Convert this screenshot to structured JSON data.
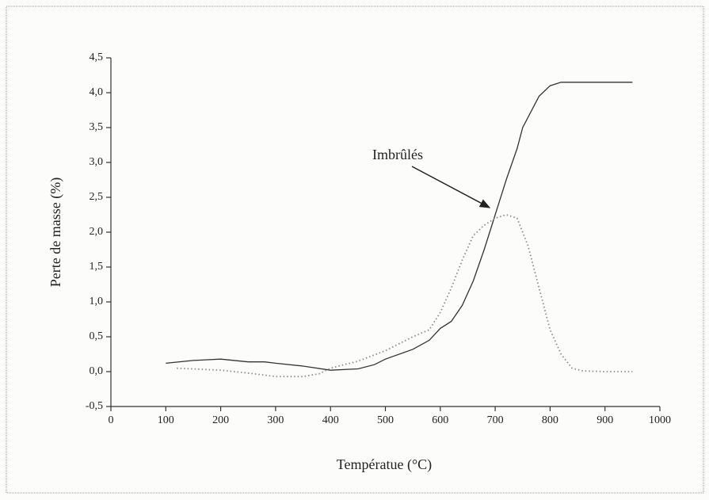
{
  "chart_data": {
    "type": "line",
    "xlabel": "Températue (°C)",
    "ylabel": "Perte de masse (%)",
    "annotation": "Imbrûlés",
    "xlim": [
      0,
      1000
    ],
    "xticks": [
      0,
      100,
      200,
      300,
      400,
      500,
      600,
      700,
      800,
      900,
      1000
    ],
    "ylim": [
      -0.5,
      4.5
    ],
    "yticks": [
      {
        "value": -0.5,
        "label": "-0,5"
      },
      {
        "value": 0,
        "label": "0,0"
      },
      {
        "value": 0.5,
        "label": "0,5"
      },
      {
        "value": 1,
        "label": "1,0"
      },
      {
        "value": 1.5,
        "label": "1,5"
      },
      {
        "value": 2,
        "label": "2,0"
      },
      {
        "value": 2.5,
        "label": "2,5"
      },
      {
        "value": 3,
        "label": "3,0"
      },
      {
        "value": 3.5,
        "label": "3,5"
      },
      {
        "value": 4,
        "label": "4,0"
      },
      {
        "value": 4.5,
        "label": "4,5"
      }
    ],
    "series": [
      {
        "color": "#333333",
        "dash": "solid",
        "x": [
          100,
          150,
          200,
          250,
          280,
          300,
          350,
          400,
          450,
          480,
          500,
          550,
          580,
          600,
          620,
          640,
          660,
          680,
          700,
          720,
          740,
          750,
          780,
          800,
          820,
          950
        ],
        "values": [
          0.12,
          0.16,
          0.18,
          0.14,
          0.14,
          0.12,
          0.08,
          0.02,
          0.04,
          0.1,
          0.18,
          0.32,
          0.45,
          0.62,
          0.72,
          0.95,
          1.3,
          1.75,
          2.25,
          2.75,
          3.2,
          3.5,
          3.95,
          4.1,
          4.15,
          4.15
        ]
      },
      {
        "color": "#8a8a8a",
        "dash": "dotted",
        "x": [
          120,
          200,
          250,
          300,
          350,
          380,
          400,
          450,
          500,
          550,
          580,
          600,
          620,
          640,
          660,
          680,
          700,
          720,
          740,
          760,
          780,
          800,
          820,
          840,
          860,
          900,
          950
        ],
        "values": [
          0.05,
          0.02,
          -0.02,
          -0.07,
          -0.07,
          -0.03,
          0.05,
          0.15,
          0.3,
          0.5,
          0.6,
          0.85,
          1.2,
          1.6,
          1.95,
          2.1,
          2.2,
          2.25,
          2.2,
          1.8,
          1.2,
          0.6,
          0.25,
          0.05,
          0.01,
          0,
          0
        ]
      }
    ]
  }
}
